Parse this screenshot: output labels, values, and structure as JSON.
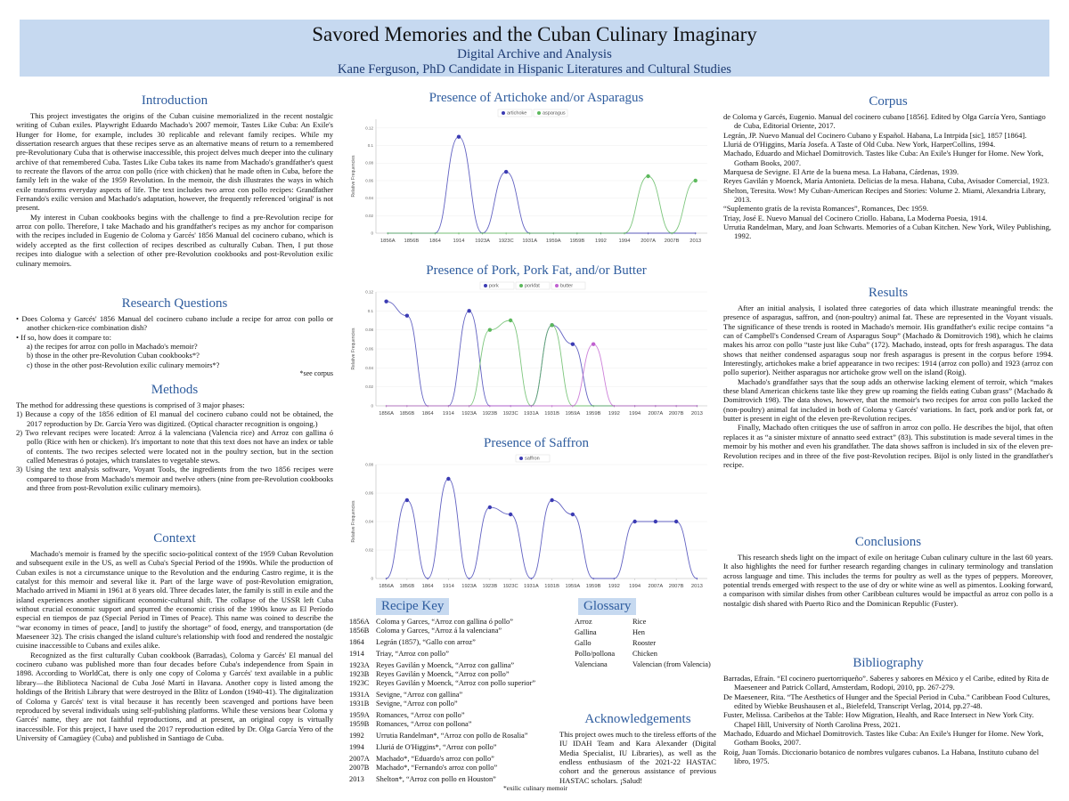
{
  "header": {
    "title": "Savored Memories and the Cuban Culinary Imaginary",
    "subtitle": "Digital Archive and Analysis",
    "author": "Kane Ferguson, PhD Candidate in Hispanic Literatures and Cultural Studies"
  },
  "introduction": {
    "heading": "Introduction",
    "paragraphs": [
      "This project investigates the origins of the Cuban cuisine memorialized in the recent nostalgic writing of Cuban exiles. Playwright Eduardo Machado's 2007 memoir, Tastes Like Cuba: An Exile's Hunger for Home, for example, includes 30 replicable and relevant family recipes. While my dissertation research argues that these recipes serve as an alternative means of return to a remembered pre-Revolutionary Cuba that is otherwise inaccessible, this project delves much deeper into the culinary archive of that remembered Cuba. Tastes Like Cuba takes its name from Machado's grandfather's quest to recreate the flavors of the arroz con pollo (rice with chicken) that he made often in Cuba, before the family left in the wake of the 1959 Revolution. In the memoir, the dish illustrates the ways in which exile transforms everyday aspects of life. The text includes two arroz con pollo recipes: Grandfather Fernando's exilic version and Machado's adaptation, however, the frequently referenced 'original' is not present.",
      "My interest in Cuban cookbooks begins with the challenge to find a pre-Revolution recipe for arroz con pollo. Therefore, I take Machado and his grandfather's recipes as my anchor for comparison with the recipes included in Eugenio de Coloma y Garcés' 1856 Manual del cocinero cubano, which is widely accepted as the first collection of recipes described as culturally Cuban. Then, I put those recipes into dialogue with a selection of other pre-Revolution cookbooks and post-Revolution exilic culinary memoirs."
    ]
  },
  "research_questions": {
    "heading": "Research Questions",
    "items": [
      "• Does Coloma y Garcés' 1856 Manual del cocinero cubano include a recipe for arroz con pollo or another chicken-rice combination dish?",
      "• If so, how does it compare to:",
      "a) the recipes for arroz con pollo in Machado's memoir?",
      "b) those in the other pre-Revolution Cuban cookbooks*?",
      "c) those in the other post-Revolution exilic culinary memoirs*?"
    ],
    "note": "*see corpus"
  },
  "methods": {
    "heading": "Methods",
    "intro": "The method for addressing these questions is comprised of 3 major phases:",
    "items": [
      "1) Because a copy of the 1856 edition of El manual del cocinero cubano could not be obtained, the 2017 reproduction by Dr. García Yero was digitized. (Optical character recognition is ongoing.)",
      "2) Two relevant recipes were located: Arroz á la valenciana (Valencia rice) and Arroz con gallina ó pollo (Rice with hen or chicken). It's important to note that this text does not have an index or table of contents. The two recipes selected were located not in the poultry section, but in the section called Menestras ó potajes, which translates to vegetable stews.",
      "3) Using the text analysis software, Voyant Tools, the ingredients from the two 1856 recipes were compared to those from Machado's memoir and twelve others (nine from pre-Revolution cookbooks and three from post-Revolution exilic culinary memoirs)."
    ]
  },
  "context": {
    "heading": "Context",
    "paragraphs": [
      "Machado's memoir is framed by the specific socio-political context of the 1959 Cuban Revolution and subsequent exile in the US, as well as Cuba's Special Period of the 1990s. While the production of Cuban exiles is not a circumstance unique to the Revolution and the enduring Castro regime, it is the catalyst for this memoir and several like it. Part of the large wave of post-Revolution emigration, Machado arrived in Miami in 1961 at 8 years old. Three decades later, the family is still in exile and the island experiences another significant economic-cultural shift. The collapse of the USSR left Cuba without crucial economic support and spurred the economic crisis of the 1990s know as El Período especial en tiempos de paz (Special Period in Times of Peace). This name was coined to describe the “war economy in times of peace, [and] to justify the shortage” of food, energy, and transportation (de Maeseneer 32). The crisis changed the island culture's relationship with food and rendered the nostalgic cuisine inaccessible to Cubans and exiles alike.",
      "Recognized as the first culturally Cuban cookbook (Barradas), Coloma y Garcés' El manual del cocinero cubano was published more than four decades before Cuba's independence from Spain in 1898. According to WorldCat, there is only one copy of Coloma y Garcés' text available in a public library—the Biblioteca Nacional de Cuba José Martí in Havana. Another copy is listed among the holdings of the British Library that were destroyed in the Blitz of London (1940-41). The digitalization of Coloma y Garcés' text is vital because it has recently been scavenged and portions have been reproduced by several individuals using self-publishing platforms. While these versions bear Coloma y Garcés' name, they are not faithful reproductions, and at present, an original copy is virtually inaccessible. For this project, I have used the 2017 reproduction edited by Dr. Olga García Yero of the University of Camagüey (Cuba) and published in Santiago de Cuba."
    ]
  },
  "chart_data": [
    {
      "type": "line",
      "title": "Presence of Artichoke and/or Asparagus",
      "y_label": "Relative Frequencies",
      "categories": [
        "1856A",
        "1856B",
        "1864",
        "1914",
        "1923A",
        "1923C",
        "1931A",
        "1959A",
        "1959B",
        "1992",
        "1994",
        "2007A",
        "2007B",
        "2013"
      ],
      "series": [
        {
          "name": "artichoke",
          "color": "#3b3bb3",
          "values": [
            0,
            0,
            0,
            0.11,
            0,
            0.07,
            0,
            0,
            0,
            0,
            0,
            0,
            0,
            0
          ]
        },
        {
          "name": "asparagus",
          "color": "#5cb85c",
          "values": [
            0,
            0,
            0,
            0,
            0,
            0,
            0,
            0,
            0,
            0,
            0,
            0.065,
            0,
            0.06
          ]
        }
      ],
      "ylim": [
        0,
        0.13
      ],
      "yticks": [
        0,
        0.02,
        0.04,
        0.06,
        0.08,
        0.1,
        0.12
      ],
      "grid": true
    },
    {
      "type": "line",
      "title": "Presence of Pork, Pork Fat, and/or Butter",
      "y_label": "Relative Frequencies",
      "categories": [
        "1856A",
        "1856B",
        "1864",
        "1914",
        "1923A",
        "1923B",
        "1923C",
        "1931A",
        "1931B",
        "1959A",
        "1959B",
        "1992",
        "1994",
        "2007A",
        "2007B",
        "2013"
      ],
      "series": [
        {
          "name": "pork",
          "color": "#3b3bb3",
          "values": [
            0.11,
            0.095,
            0,
            0,
            0.1,
            0,
            0,
            0,
            0.085,
            0.065,
            0,
            0,
            0,
            0,
            0,
            0
          ]
        },
        {
          "name": "porkfat",
          "color": "#5cb85c",
          "values": [
            0,
            0,
            0,
            0,
            0,
            0.08,
            0.09,
            0,
            0.085,
            0,
            0,
            0,
            0,
            0,
            0,
            0
          ]
        },
        {
          "name": "butter",
          "color": "#c060d0",
          "values": [
            0,
            0,
            0,
            0,
            0,
            0,
            0,
            0,
            0,
            0,
            0.065,
            0,
            0,
            0,
            0,
            0
          ]
        }
      ],
      "ylim": [
        0,
        0.12
      ],
      "yticks": [
        0,
        0.02,
        0.04,
        0.06,
        0.08,
        0.1,
        0.12
      ],
      "grid": true
    },
    {
      "type": "line",
      "title": "Presence of Saffron",
      "y_label": "Relative Frequencies",
      "categories": [
        "1856A",
        "1856B",
        "1864",
        "1914",
        "1923A",
        "1923B",
        "1923C",
        "1931A",
        "1931B",
        "1959A",
        "1959B",
        "1992",
        "1994",
        "2007A",
        "2007B",
        "2013"
      ],
      "series": [
        {
          "name": "saffron",
          "color": "#3b3bb3",
          "values": [
            0,
            0.055,
            0,
            0.07,
            0,
            0.05,
            0.045,
            0,
            0.055,
            0.045,
            0,
            0,
            0.04,
            0.04,
            0.04,
            0
          ]
        }
      ],
      "ylim": [
        0,
        0.08
      ],
      "yticks": [
        0,
        0.02,
        0.04,
        0.06,
        0.08
      ],
      "grid": true
    }
  ],
  "recipe_key": {
    "heading": "Recipe Key",
    "items": [
      {
        "id": "1856A",
        "text": "Coloma y Garces, “Arroz con gallina ó pollo”"
      },
      {
        "id": "1856B",
        "text": "Coloma y Garces, “Arroz á la valenciana”"
      },
      {
        "id": "1864",
        "text": "Legrán (1857), “Gallo con arroz”"
      },
      {
        "id": "1914",
        "text": "Triay, “Arroz con pollo”"
      },
      {
        "id": "1923A",
        "text": "Reyes Gavilán y Moenck, “Arroz con gallina”"
      },
      {
        "id": "1923B",
        "text": "Reyes Gavilán y Moenck, “Arroz con pollo”"
      },
      {
        "id": "1923C",
        "text": "Reyes Gavilán y Moenck, “Arroz con pollo superior”"
      },
      {
        "id": "1931A",
        "text": "Sevigne, “Arroz con gallina”"
      },
      {
        "id": "1931B",
        "text": "Sevigne, “Arroz con pollo”"
      },
      {
        "id": "1959A",
        "text": "Romances, “Arroz con pollo”"
      },
      {
        "id": "1959B",
        "text": "Romances, “Arroz con pollona”"
      },
      {
        "id": "1992",
        "text": "Urrutia Randelman*, “Arroz con pollo de Rosalia”"
      },
      {
        "id": "1994",
        "text": "Lluriá de O'Higgins*, “Arroz con pollo”"
      },
      {
        "id": "2007A",
        "text": "Machado*, “Eduardo's arroz con pollo”"
      },
      {
        "id": "2007B",
        "text": "Machado*, “Fernando's arroz con pollo”"
      },
      {
        "id": "2013",
        "text": "Shelton*, “Arroz con pollo en Houston”"
      }
    ],
    "note": "*exilic culinary memoir"
  },
  "glossary": {
    "heading": "Glossary",
    "rows": [
      [
        "Arroz",
        "Rice"
      ],
      [
        "Gallina",
        "Hen"
      ],
      [
        "Gallo",
        "Rooster"
      ],
      [
        "Pollo/pollona",
        "Chicken"
      ],
      [
        "Valenciana",
        "Valencian (from Valencia)"
      ]
    ]
  },
  "acknowledgements": {
    "heading": "Acknowledgements",
    "text": "This project owes much to the tireless efforts of the IU IDAH Team and Kara Alexander (Digital Media Specialist, IU Libraries), as well as the endless enthusiasm of the 2021-22 HASTAC cohort and the generous assistance of previous HASTAC scholars. ¡Salud!"
  },
  "corpus": {
    "heading": "Corpus",
    "entries": [
      "de Coloma y Garcés, Eugenio. Manual del cocinero cubano [1856]. Edited by Olga García Yero, Santiago de Cuba, Editorial Oriente, 2017.",
      "Legrán, JP. Nuevo Manual del Cocinero Cubano y Español. Habana, La Intrpida [sic], 1857 [1864].",
      "Lluriá de O'Higgins, María Josefa. A Taste of Old Cuba. New York, HarperCollins, 1994.",
      "Machado, Eduardo and Michael Domitrovich. Tastes like Cuba: An Exile's Hunger for Home. New York, Gotham Books, 2007.",
      "Marquesa de Sevigne. El Arte de la buena mesa. La Habana, Cárdenas, 1939.",
      "Reyes Gavilán y Moenck, María Antonieta. Delicias de la mesa. Habana, Cuba, Avisador Comercial, 1923.",
      "Shelton, Teresita. Wow! My Cuban-American Recipes and Stories: Volume 2. Miami, Alexandria Library, 2013.",
      "“Suplemento gratís de la revista Romances”, Romances, Dec 1959.",
      "Triay, José E. Nuevo Manual del Cocinero Criollo. Habana, La Moderna Poesia, 1914.",
      "Urrutia Randelman, Mary, and Joan Schwarts. Memories of a Cuban Kitchen. New York, Wiley Publishing, 1992."
    ]
  },
  "results": {
    "heading": "Results",
    "paragraphs": [
      "After an initial analysis, I isolated three categories of data which illustrate meaningful trends: the presence of asparagus, saffron, and (non-poultry) animal fat. These are represented in the Voyant visuals. The significance of these trends is rooted in Machado's memoir. His grandfather's exilic recipe contains “a can of Campbell's Condensed Cream of Asparagus Soup” (Machado & Domitrovich 198), which he claims makes his arroz con pollo “taste just like Cuba” (172). Machado, instead, opts for fresh asparagus. The data shows that neither condensed asparagus soup nor fresh asparagus is present in the corpus before 1994. Interestingly, artichokes make a brief appearance in two recipes: 1914 (arroz con pollo) and 1923 (arroz con pollo superior). Neither asparagus nor artichoke grow well on the island (Roig).",
      "Machado's grandfather says that the soup adds an otherwise lacking element of terroir, which “makes these bland American chickens taste like they grew up roaming the fields eating Cuban grass” (Machado & Domitrovich 198). The data shows, however, that the memoir's two recipes for arroz con pollo lacked the (non-poultry) animal fat included in both of Coloma y Garcés' variations. In fact, pork and/or pork fat, or butter is present in eight of the eleven pre-Revolution recipes.",
      "Finally, Machado often critiques the use of saffron in arroz con pollo. He describes the bijol, that often replaces it as “a sinister mixture of annatto seed extract” (83). This substitution is made several times in the memoir by his mother and even his grandfather. The data shows saffron is included in six of the eleven pre-Revolution recipes and in three of the five post-Revolution recipes. Bijol is only listed in the grandfather's recipe."
    ]
  },
  "conclusions": {
    "heading": "Conclusions",
    "paragraphs": [
      "This research sheds light on the impact of exile on heritage Cuban culinary culture in the last 60 years. It also highlights the need for further research regarding changes in culinary terminology and translation across language and time. This includes the terms for poultry as well as the types of peppers. Moreover, potential trends emerged with respect to the use of dry or white wine as well as pimentos. Looking forward, a comparison with similar dishes from other Caribbean cultures would be impactful as arroz con pollo is a nostalgic dish shared with Puerto Rico and the Dominican Republic (Fuster)."
    ]
  },
  "bibliography": {
    "heading": "Bibliography",
    "entries": [
      "Barradas, Efraín. “El cocinero puertorriqueño”. Saberes y sabores en México y el Caribe, edited by Rita de Maeseneer and Patrick Collard, Amsterdam, Rodopi, 2010, pp. 267-279.",
      "De Maeseneer, Rita. “The Aesthetics of Hunger and the Special Period in Cuba.” Caribbean Food Cultures, edited by Wiebke Beushausen et al., Bielefeld, Transcript Verlag, 2014, pp.27-48.",
      "Fuster, Melissa. Caribeños at the Table: How Migration, Health, and Race Intersect in New York City. Chapel Hill, University of North Carolina Press, 2021.",
      "Machado, Eduardo and Michael Domitrovich. Tastes like Cuba: An Exile's Hunger for Home. New York, Gotham Books, 2007.",
      "Roig, Juan Tomás. Diccionario botanico de nombres vulgares cubanos. La Habana, Instituto cubano del libro, 1975."
    ]
  }
}
